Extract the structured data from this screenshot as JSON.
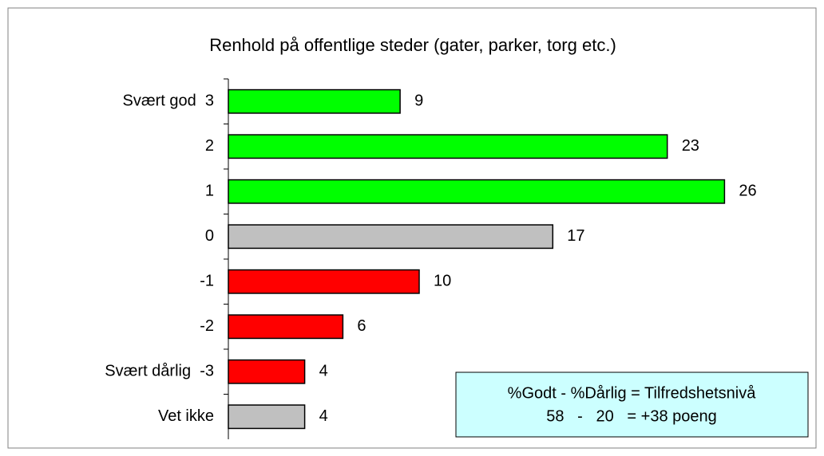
{
  "chart_data": {
    "type": "barh",
    "title": "Renhold på offentlige steder (gater, parker, torg etc.)",
    "categories": [
      "Svært god  3",
      "2",
      "1",
      "0",
      "-1",
      "-2",
      "Svært dårlig  -3",
      "Vet ikke"
    ],
    "values": [
      9,
      23,
      26,
      17,
      10,
      6,
      4,
      4
    ],
    "colors": [
      "#00ff00",
      "#00ff00",
      "#00ff00",
      "#c0c0c0",
      "#ff0000",
      "#ff0000",
      "#ff0000",
      "#c0c0c0"
    ],
    "xlim": [
      0,
      30
    ],
    "annotations": [
      "%Godt - %Dårlig = Tilfredshetsnivå",
      "58   -   20   = +38 poeng"
    ]
  }
}
